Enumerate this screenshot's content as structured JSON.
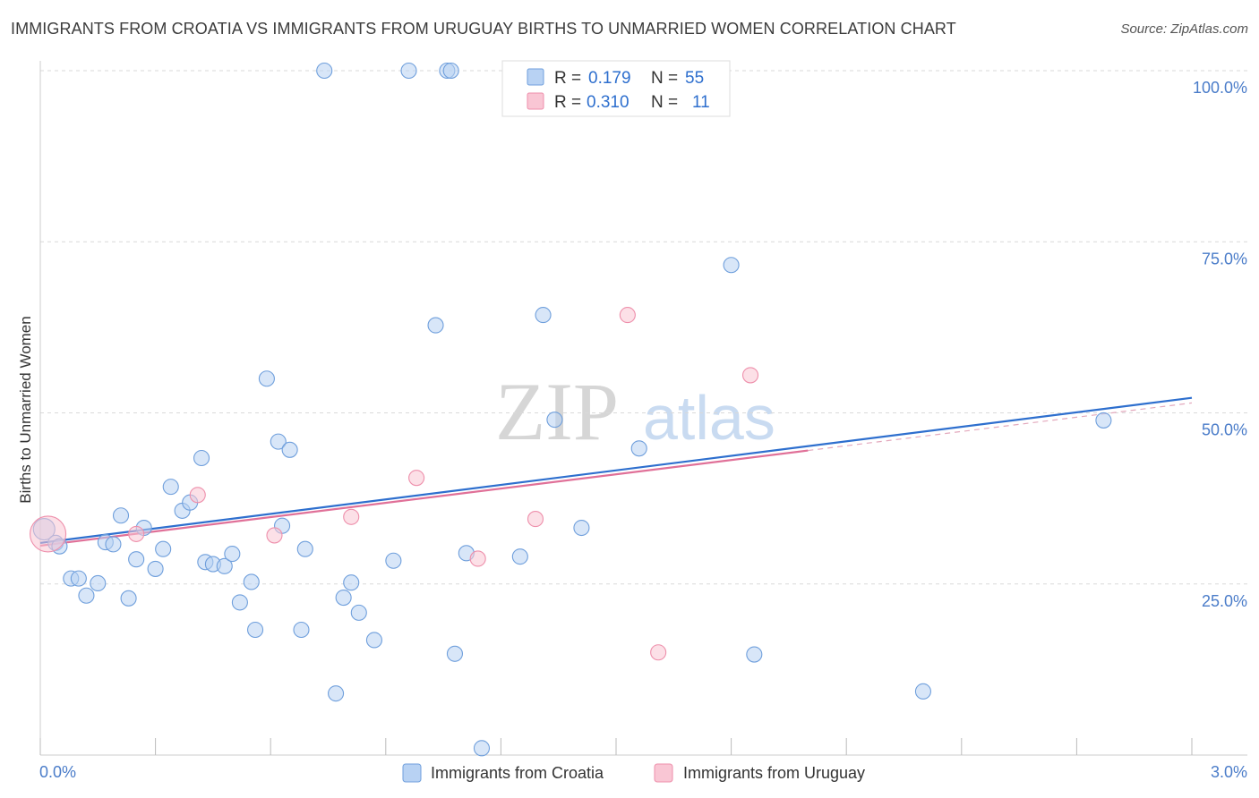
{
  "title": "IMMIGRANTS FROM CROATIA VS IMMIGRANTS FROM URUGUAY BIRTHS TO UNMARRIED WOMEN CORRELATION CHART",
  "source": "Source: ZipAtlas.com",
  "watermark": {
    "zip": "ZIP",
    "atlas": "atlas"
  },
  "colors": {
    "croatia_fill": "#b8d2f3",
    "croatia_stroke": "#6f9fdc",
    "croatia_line": "#2e6fce",
    "uruguay_fill": "#f9c6d4",
    "uruguay_stroke": "#ee8fab",
    "uruguay_line": "#e07098",
    "grid": "#d9d9d9",
    "axis_text": "#4a7cc9"
  },
  "legend": {
    "rows": [
      {
        "r_label": "R =",
        "r_value": "0.179",
        "n_label": "N =",
        "n_value": "55"
      },
      {
        "r_label": "R =",
        "r_value": "0.310",
        "n_label": "N =",
        "n_value": "11"
      }
    ]
  },
  "chart_data": {
    "type": "scatter",
    "title": "IMMIGRANTS FROM CROATIA VS IMMIGRANTS FROM URUGUAY BIRTHS TO UNMARRIED WOMEN CORRELATION CHART",
    "xlabel": "",
    "ylabel": "Births to Unmarried Women",
    "xlim": [
      0,
      3.0
    ],
    "ylim": [
      0,
      100
    ],
    "x_tick_labels": [
      "0.0%",
      "3.0%"
    ],
    "y_ticks": [
      25,
      50,
      75,
      100
    ],
    "y_tick_labels": [
      "25.0%",
      "50.0%",
      "75.0%",
      "100.0%"
    ],
    "grid": true,
    "legend_position": "bottom",
    "series": [
      {
        "name": "Immigrants from Croatia",
        "r": 0.179,
        "n": 55,
        "trend": {
          "x": [
            0.0,
            3.0
          ],
          "y": [
            31.0,
            52.2
          ]
        },
        "points": [
          [
            0.01,
            33.0
          ],
          [
            0.04,
            31.0
          ],
          [
            0.05,
            30.5
          ],
          [
            0.08,
            25.8
          ],
          [
            0.1,
            25.8
          ],
          [
            0.12,
            23.3
          ],
          [
            0.15,
            25.1
          ],
          [
            0.17,
            31.1
          ],
          [
            0.19,
            30.8
          ],
          [
            0.21,
            35.0
          ],
          [
            0.23,
            22.9
          ],
          [
            0.25,
            28.6
          ],
          [
            0.27,
            33.2
          ],
          [
            0.3,
            27.2
          ],
          [
            0.32,
            30.1
          ],
          [
            0.34,
            39.2
          ],
          [
            0.37,
            35.7
          ],
          [
            0.39,
            36.9
          ],
          [
            0.42,
            43.4
          ],
          [
            0.43,
            28.2
          ],
          [
            0.45,
            27.9
          ],
          [
            0.48,
            27.6
          ],
          [
            0.5,
            29.4
          ],
          [
            0.52,
            22.3
          ],
          [
            0.55,
            25.3
          ],
          [
            0.56,
            18.3
          ],
          [
            0.59,
            55.0
          ],
          [
            0.62,
            45.8
          ],
          [
            0.63,
            33.5
          ],
          [
            0.65,
            44.6
          ],
          [
            0.68,
            18.3
          ],
          [
            0.69,
            30.1
          ],
          [
            0.74,
            100.0
          ],
          [
            0.77,
            9.0
          ],
          [
            0.79,
            23.0
          ],
          [
            0.81,
            25.2
          ],
          [
            0.83,
            20.8
          ],
          [
            0.87,
            16.8
          ],
          [
            0.92,
            28.4
          ],
          [
            0.96,
            100.0
          ],
          [
            1.03,
            62.8
          ],
          [
            1.06,
            100.0
          ],
          [
            1.07,
            100.0
          ],
          [
            1.08,
            14.8
          ],
          [
            1.11,
            29.5
          ],
          [
            1.15,
            1.0
          ],
          [
            1.25,
            29.0
          ],
          [
            1.31,
            64.3
          ],
          [
            1.34,
            49.0
          ],
          [
            1.41,
            33.2
          ],
          [
            1.56,
            44.8
          ],
          [
            1.8,
            71.6
          ],
          [
            1.86,
            14.7
          ],
          [
            2.3,
            9.3
          ],
          [
            2.77,
            48.9
          ]
        ]
      },
      {
        "name": "Immigrants from Uruguay",
        "r": 0.31,
        "n": 11,
        "trend": {
          "x": [
            0.0,
            2.0
          ],
          "y": [
            30.6,
            44.5
          ]
        },
        "points": [
          [
            0.02,
            32.3
          ],
          [
            0.25,
            32.3
          ],
          [
            0.41,
            38.0
          ],
          [
            0.61,
            32.1
          ],
          [
            0.81,
            34.8
          ],
          [
            0.98,
            40.5
          ],
          [
            1.14,
            28.7
          ],
          [
            1.29,
            34.5
          ],
          [
            1.53,
            64.3
          ],
          [
            1.61,
            15.0
          ],
          [
            1.85,
            55.5
          ]
        ]
      }
    ]
  }
}
